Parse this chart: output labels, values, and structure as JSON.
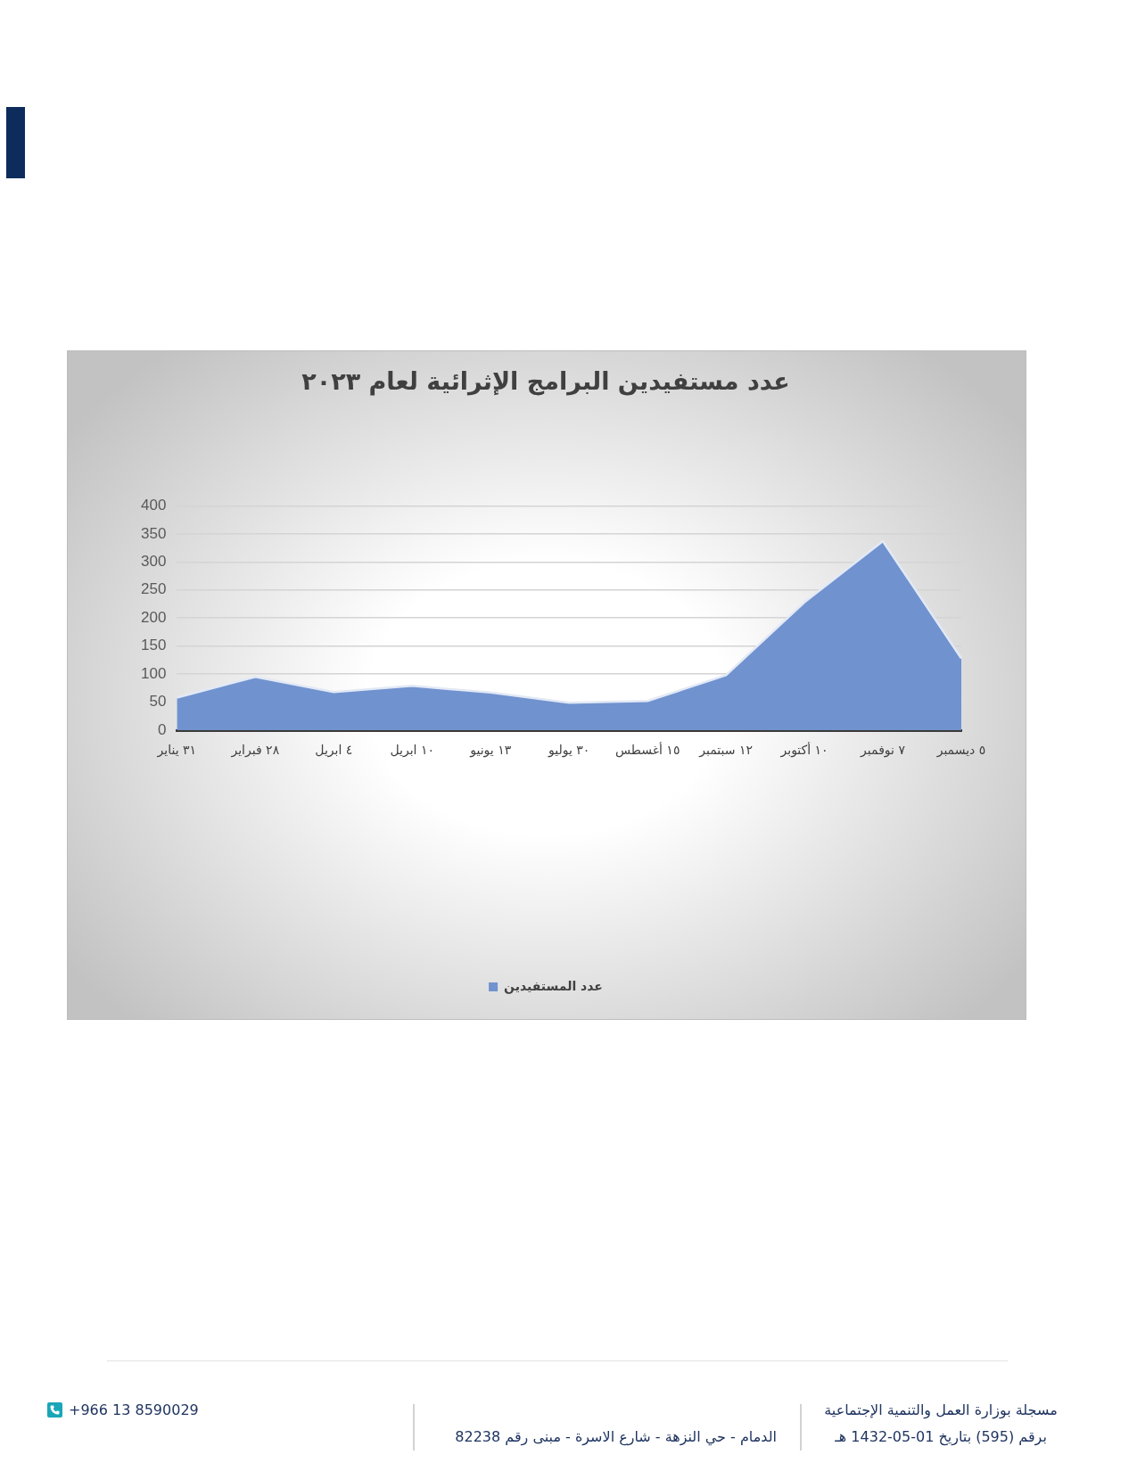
{
  "chart_data": {
    "type": "area",
    "title": "عدد مستفيدين البرامج الإثرائية لعام ٢٠٢٣",
    "categories": [
      "٣١ يناير",
      "٢٨ فبراير",
      "٤ ابريل",
      "١٠ ابريل",
      "١٣ يونيو",
      "٣٠ يوليو",
      "١٥ أغسطس",
      "١٢ سبتمبر",
      "١٠ أكتوبر",
      "٧ نوفمبر",
      "٥ ديسمبر"
    ],
    "series": [
      {
        "name": "عدد المستفيدين",
        "color": "#7092cf",
        "values": [
          58,
          95,
          68,
          79,
          67,
          49,
          52,
          98,
          228,
          337,
          128
        ]
      }
    ],
    "ylim": [
      0,
      400
    ],
    "yticks": [
      0,
      50,
      100,
      150,
      200,
      250,
      300,
      350,
      400
    ],
    "grid": "y",
    "legend": "bottom",
    "annotations": [
      "مسجلة بوزارة العمل والتنمية الإجتماعية",
      "برقم (595) بتاريخ 01-05-1432 هـ",
      "الدمام - حي النزهة - شارع الاسرة - مبنى رقم 82238",
      "+966 13 8590029"
    ]
  }
}
